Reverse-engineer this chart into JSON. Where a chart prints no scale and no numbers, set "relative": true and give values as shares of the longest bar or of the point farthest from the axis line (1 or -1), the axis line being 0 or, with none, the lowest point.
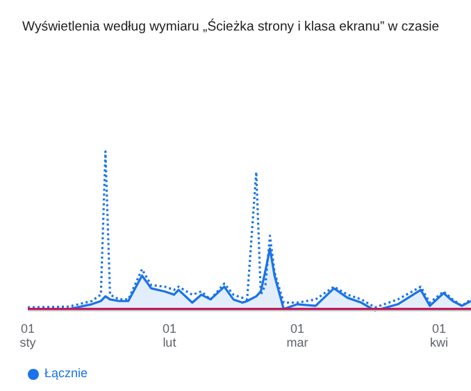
{
  "chart_data": {
    "type": "line",
    "title": "Wyświetlenia według wymiaru „Ścieżka strony i klasa ekranu” w czasie",
    "relative": true,
    "x": [
      "--01-01",
      "--01-10",
      "--01-15",
      "--01-17",
      "--01-18",
      "--01-19",
      "--01-21",
      "--01-23",
      "--01-26",
      "--01-28",
      "--01-31",
      "--02-02",
      "--02-03",
      "--02-06",
      "--02-08",
      "--02-10",
      "--02-13",
      "--02-15",
      "--02-17",
      "--02-18",
      "--02-20",
      "--02-21",
      "--02-22",
      "--02-23",
      "--02-24",
      "--02-26",
      "--03-01",
      "--03-05",
      "--03-09",
      "--03-12",
      "--03-15",
      "--03-18",
      "--03-23",
      "--03-28",
      "--03-30",
      "--04-02",
      "--04-04",
      "--04-06",
      "--04-08"
    ],
    "xlim": [
      "--01-01",
      "--04-08"
    ],
    "xticks": [
      {
        "value": "--01-01",
        "label": "01\nsty"
      },
      {
        "value": "--02-01",
        "label": "01\nlut"
      },
      {
        "value": "--03-01",
        "label": "01\nmar"
      },
      {
        "value": "--04-01",
        "label": "01\nkwi"
      }
    ],
    "series": [
      {
        "name": "Łącznie",
        "line_style": "dotted",
        "color": "#1a73e8",
        "values": [
          0.02,
          0.025,
          0.06,
          0.1,
          1,
          0.1,
          0.07,
          0.07,
          0.26,
          0.16,
          0.15,
          0.13,
          0.15,
          0.1,
          0.12,
          0.07,
          0.17,
          0.1,
          0.08,
          0.07,
          0.87,
          0.1,
          0.16,
          0.47,
          0.24,
          0.05,
          0.05,
          0.07,
          0.15,
          0.1,
          0.07,
          0.02,
          0.07,
          0.15,
          0.05,
          0.12,
          0.07,
          0.03,
          0.07
        ]
      },
      {
        "type": "area",
        "line_style": "solid",
        "color": "#1a73e8",
        "values": [
          0.01,
          0.01,
          0.04,
          0.06,
          0.09,
          0.07,
          0.06,
          0.06,
          0.22,
          0.14,
          0.12,
          0.1,
          0.13,
          0.05,
          0.1,
          0.07,
          0.15,
          0.07,
          0.05,
          0.06,
          0.09,
          0.12,
          0.25,
          0.39,
          0.22,
          0.01,
          0.04,
          0.03,
          0.14,
          0.08,
          0.05,
          0,
          0.04,
          0.13,
          0.03,
          0.11,
          0.06,
          0.03,
          0.06
        ]
      },
      {
        "type": "line",
        "line_style": "solid",
        "color": "#c2185b",
        "values": [
          0.01,
          0.01,
          0.01,
          0.01,
          0.01,
          0.01,
          0.01,
          0.01,
          0.01,
          0.01,
          0.01,
          0.01,
          0.01,
          0.01,
          0.01,
          0.01,
          0.01,
          0.01,
          0.01,
          0.01,
          0.01,
          0.01,
          0.01,
          0.01,
          0.01,
          0.01,
          0.01,
          0.01,
          0.01,
          0.01,
          0.01,
          0.01,
          0.01,
          0.01,
          0.01,
          0.01,
          0.01,
          0.01,
          0.01
        ]
      }
    ],
    "legend": "bottom left",
    "marker": "none"
  }
}
